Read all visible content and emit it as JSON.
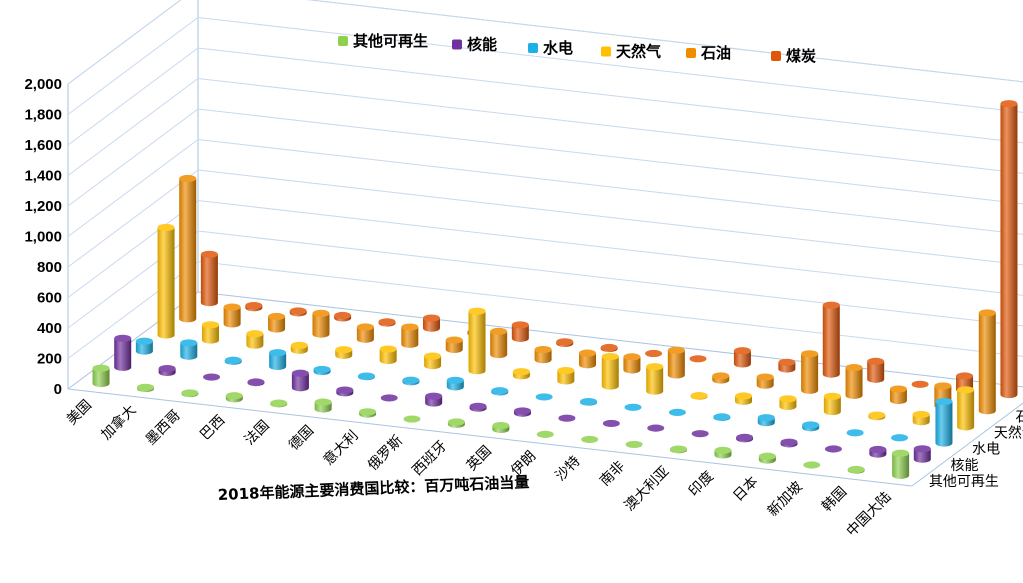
{
  "chart_data": {
    "type": "bar3d",
    "title": "2018年能源主要消费国比较：百万吨石油当量",
    "ylim": [
      0,
      2000
    ],
    "yticks": [
      "0",
      "200",
      "400",
      "600",
      "800",
      "1,000",
      "1,200",
      "1,400",
      "1,600",
      "1,800",
      "2,000"
    ],
    "categories": [
      "美国",
      "加拿大",
      "墨西哥",
      "巴西",
      "法国",
      "德国",
      "意大利",
      "俄罗斯",
      "西班牙",
      "英国",
      "伊朗",
      "沙特",
      "南非",
      "澳大利亚",
      "印度",
      "日本",
      "新加坡",
      "韩国",
      "中国大陆"
    ],
    "series": [
      {
        "name": "其他可再生",
        "color": "#8fd14f",
        "values": [
          100,
          8,
          5,
          20,
          5,
          45,
          15,
          1,
          15,
          25,
          1,
          1,
          2,
          5,
          30,
          25,
          1,
          5,
          145
        ]
      },
      {
        "name": "核能",
        "color": "#7030a0",
        "values": [
          190,
          25,
          3,
          4,
          95,
          18,
          0,
          45,
          12,
          15,
          1,
          0,
          3,
          0,
          9,
          11,
          0,
          30,
          68
        ]
      },
      {
        "name": "水电",
        "color": "#1cb0e6",
        "values": [
          65,
          87,
          7,
          90,
          14,
          4,
          10,
          43,
          8,
          1,
          4,
          0,
          0,
          4,
          32,
          18,
          0,
          1,
          272
        ]
      },
      {
        "name": "天然气",
        "color": "#ffc000",
        "values": [
          705,
          100,
          75,
          32,
          37,
          75,
          62,
          390,
          27,
          68,
          193,
          160,
          4,
          35,
          50,
          100,
          10,
          48,
          243
        ]
      },
      {
        "name": "石油",
        "color": "#f08c00",
        "values": [
          920,
          110,
          82,
          136,
          80,
          113,
          61,
          152,
          66,
          76,
          85,
          162,
          27,
          53,
          239,
          182,
          75,
          129,
          641
        ]
      },
      {
        "name": "煤炭",
        "color": "#e0570a",
        "values": [
          317,
          14,
          12,
          16,
          8,
          66,
          9,
          88,
          11,
          7,
          1,
          0,
          86,
          44,
          452,
          117,
          0,
          88,
          1907
        ]
      }
    ],
    "legend_position": "top",
    "grid": true
  }
}
